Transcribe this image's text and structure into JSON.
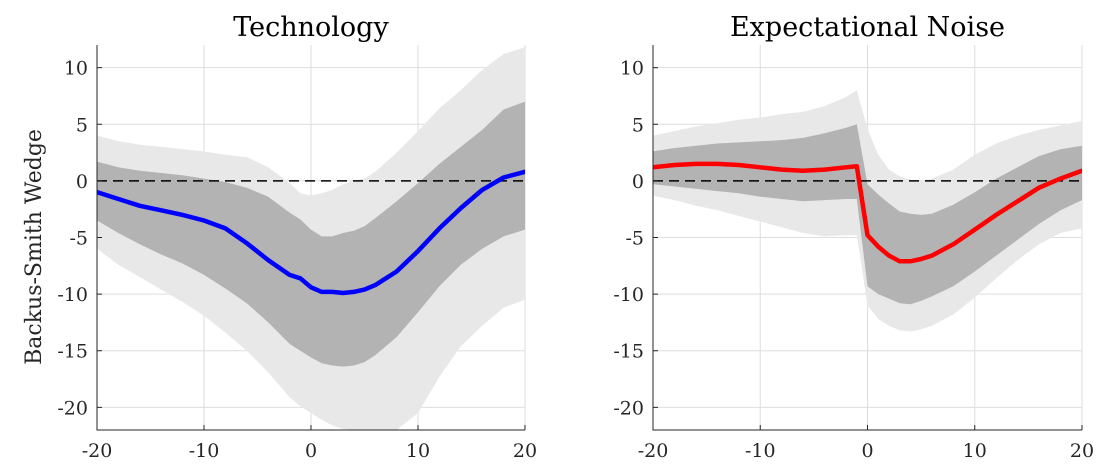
{
  "figure": {
    "ylabel": "Backus-Smith Wedge"
  },
  "chart_data": [
    {
      "type": "line",
      "title": "Technology",
      "xlabel": "",
      "ylabel": "Backus-Smith Wedge",
      "xlim": [
        -20,
        20
      ],
      "ylim": [
        -22,
        12
      ],
      "xticks": [
        -20,
        -10,
        0,
        10,
        20
      ],
      "yticks": [
        10,
        5,
        0,
        -5,
        -10,
        -15,
        -20
      ],
      "grid": true,
      "zero_line": true,
      "line_color": "#0000ff",
      "band_colors": {
        "inner": "#b3b3b3",
        "outer": "#e8e8e8"
      },
      "x": [
        -20,
        -18,
        -16,
        -14,
        -12,
        -10,
        -8,
        -6,
        -4,
        -2,
        -1,
        0,
        1,
        2,
        3,
        4,
        5,
        6,
        8,
        10,
        12,
        14,
        16,
        18,
        20
      ],
      "series": [
        {
          "name": "",
          "role": "median",
          "values": [
            -1.0,
            -1.6,
            -2.2,
            -2.6,
            -3.0,
            -3.5,
            -4.2,
            -5.5,
            -7.0,
            -8.3,
            -8.6,
            -9.4,
            -9.8,
            -9.8,
            -9.9,
            -9.8,
            -9.6,
            -9.2,
            -8.0,
            -6.2,
            -4.2,
            -2.4,
            -0.8,
            0.3,
            0.8
          ]
        },
        {
          "name": "",
          "role": "inner_upper",
          "values": [
            1.7,
            1.2,
            0.9,
            0.7,
            0.5,
            0.2,
            -0.1,
            -0.6,
            -1.4,
            -2.8,
            -3.4,
            -4.3,
            -4.9,
            -4.9,
            -4.6,
            -4.4,
            -4.0,
            -3.3,
            -1.8,
            -0.2,
            1.5,
            3.0,
            4.5,
            6.3,
            7.0
          ]
        },
        {
          "name": "",
          "role": "inner_lower",
          "values": [
            -3.5,
            -4.6,
            -5.6,
            -6.5,
            -7.3,
            -8.3,
            -9.5,
            -10.8,
            -12.5,
            -14.4,
            -15.0,
            -15.6,
            -16.1,
            -16.3,
            -16.4,
            -16.3,
            -16.0,
            -15.4,
            -13.8,
            -11.6,
            -9.3,
            -7.4,
            -6.0,
            -4.9,
            -4.3
          ]
        },
        {
          "name": "",
          "role": "outer_upper",
          "values": [
            4.0,
            3.5,
            3.2,
            3.0,
            2.8,
            2.6,
            2.3,
            2.1,
            1.2,
            -0.2,
            -1.1,
            -1.3,
            -1.1,
            -0.8,
            -0.3,
            0.0,
            0.2,
            0.8,
            2.5,
            4.4,
            6.4,
            8.0,
            9.8,
            11.2,
            11.8
          ]
        },
        {
          "name": "",
          "role": "outer_lower",
          "values": [
            -6.0,
            -7.4,
            -8.5,
            -9.6,
            -10.7,
            -11.9,
            -13.4,
            -15.0,
            -16.9,
            -19.1,
            -19.9,
            -20.5,
            -21.1,
            -21.6,
            -21.9,
            -22.0,
            -22.0,
            -22.0,
            -22.0,
            -20.5,
            -17.3,
            -14.6,
            -12.8,
            -11.2,
            -10.5
          ]
        }
      ]
    },
    {
      "type": "line",
      "title": "Expectational Noise",
      "xlabel": "",
      "ylabel": "",
      "xlim": [
        -20,
        20
      ],
      "ylim": [
        -22,
        12
      ],
      "xticks": [
        -20,
        -10,
        0,
        10,
        20
      ],
      "yticks": [
        10,
        5,
        0,
        -5,
        -10,
        -15,
        -20
      ],
      "grid": true,
      "zero_line": true,
      "line_color": "#ff0000",
      "band_colors": {
        "inner": "#b3b3b3",
        "outer": "#e8e8e8"
      },
      "x": [
        -20,
        -18,
        -16,
        -14,
        -12,
        -10,
        -8,
        -6,
        -4,
        -2,
        -1,
        0,
        1,
        2,
        3,
        4,
        5,
        6,
        8,
        10,
        12,
        14,
        16,
        18,
        20
      ],
      "series": [
        {
          "name": "",
          "role": "median",
          "values": [
            1.2,
            1.4,
            1.5,
            1.5,
            1.4,
            1.2,
            1.0,
            0.9,
            1.0,
            1.2,
            1.3,
            -4.8,
            -5.8,
            -6.6,
            -7.1,
            -7.1,
            -6.9,
            -6.6,
            -5.6,
            -4.3,
            -3.0,
            -1.8,
            -0.6,
            0.2,
            0.9
          ]
        },
        {
          "name": "",
          "role": "inner_upper",
          "values": [
            2.6,
            2.9,
            3.1,
            3.3,
            3.4,
            3.5,
            3.6,
            3.8,
            4.2,
            4.7,
            5.0,
            -0.3,
            -1.2,
            -2.0,
            -2.7,
            -2.9,
            -3.0,
            -2.9,
            -2.1,
            -1.0,
            0.2,
            1.2,
            2.2,
            2.8,
            3.1
          ]
        },
        {
          "name": "",
          "role": "inner_lower",
          "values": [
            -0.3,
            -0.5,
            -0.7,
            -0.9,
            -1.1,
            -1.4,
            -1.6,
            -1.8,
            -1.7,
            -1.6,
            -1.6,
            -9.3,
            -10.0,
            -10.4,
            -10.8,
            -10.9,
            -10.6,
            -10.2,
            -9.3,
            -8.0,
            -6.6,
            -5.2,
            -3.8,
            -2.6,
            -1.7
          ]
        },
        {
          "name": "",
          "role": "outer_upper",
          "values": [
            4.0,
            4.4,
            4.8,
            5.1,
            5.4,
            5.6,
            5.9,
            6.1,
            6.6,
            7.4,
            8.0,
            4.6,
            2.3,
            1.0,
            0.4,
            0.1,
            0.0,
            0.2,
            1.0,
            2.3,
            3.3,
            4.0,
            4.5,
            4.9,
            5.3
          ]
        },
        {
          "name": "",
          "role": "outer_lower",
          "values": [
            -1.3,
            -1.7,
            -2.2,
            -2.6,
            -3.1,
            -3.6,
            -4.1,
            -4.6,
            -4.9,
            -4.8,
            -4.8,
            -11.0,
            -12.2,
            -12.8,
            -13.2,
            -13.3,
            -13.1,
            -12.8,
            -11.8,
            -10.3,
            -8.6,
            -7.0,
            -5.6,
            -4.6,
            -4.2
          ]
        }
      ]
    }
  ]
}
